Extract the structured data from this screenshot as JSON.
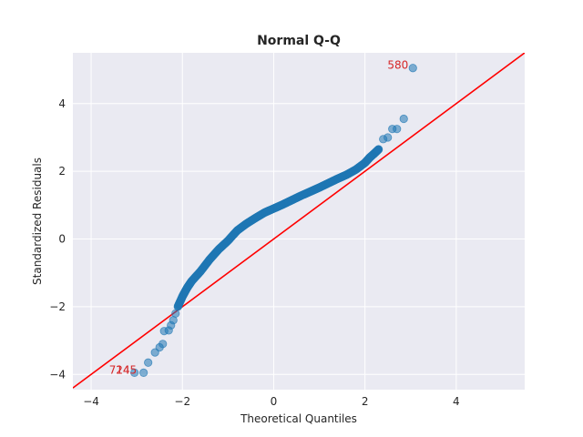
{
  "chart_data": {
    "type": "scatter",
    "title": "Normal Q-Q",
    "xlabel": "Theoretical Quantiles",
    "ylabel": "Standardized Residuals",
    "xlim": [
      -4.4,
      5.5
    ],
    "ylim": [
      -4.45,
      5.5
    ],
    "xticks": [
      -4,
      -2,
      0,
      2,
      4
    ],
    "yticks": [
      -4,
      -2,
      0,
      2,
      4
    ],
    "xtick_labels": [
      "−4",
      "−2",
      "0",
      "2",
      "4"
    ],
    "ytick_labels": [
      "−4",
      "−2",
      "0",
      "2",
      "4"
    ],
    "grid": true,
    "background": "#eaeaf2",
    "point_color": "#1f77b4",
    "line_color": "#ff0000",
    "annotation_color": "#d62728",
    "reference_line": {
      "slope": 1,
      "intercept": 0
    },
    "curve": [
      [
        -2.1,
        -2.0
      ],
      [
        -2.0,
        -1.7
      ],
      [
        -1.9,
        -1.45
      ],
      [
        -1.8,
        -1.25
      ],
      [
        -1.6,
        -0.95
      ],
      [
        -1.4,
        -0.6
      ],
      [
        -1.2,
        -0.3
      ],
      [
        -1.0,
        -0.05
      ],
      [
        -0.8,
        0.25
      ],
      [
        -0.6,
        0.45
      ],
      [
        -0.4,
        0.62
      ],
      [
        -0.2,
        0.78
      ],
      [
        0.0,
        0.9
      ],
      [
        0.2,
        1.02
      ],
      [
        0.4,
        1.15
      ],
      [
        0.6,
        1.28
      ],
      [
        0.8,
        1.4
      ],
      [
        1.0,
        1.52
      ],
      [
        1.2,
        1.65
      ],
      [
        1.4,
        1.78
      ],
      [
        1.6,
        1.9
      ],
      [
        1.8,
        2.05
      ],
      [
        2.0,
        2.25
      ],
      [
        2.1,
        2.4
      ],
      [
        2.2,
        2.52
      ],
      [
        2.3,
        2.65
      ]
    ],
    "outliers": [
      [
        -3.05,
        -3.95
      ],
      [
        -2.85,
        -3.95
      ],
      [
        -2.75,
        -3.65
      ],
      [
        -2.6,
        -3.35
      ],
      [
        -2.5,
        -3.2
      ],
      [
        -2.43,
        -3.1
      ],
      [
        -2.4,
        -2.72
      ],
      [
        -2.3,
        -2.7
      ],
      [
        -2.25,
        -2.55
      ],
      [
        -2.2,
        -2.4
      ],
      [
        -2.15,
        -2.2
      ],
      [
        2.4,
        2.95
      ],
      [
        2.5,
        3.0
      ],
      [
        2.6,
        3.25
      ],
      [
        2.7,
        3.25
      ],
      [
        2.85,
        3.55
      ],
      [
        3.05,
        5.05
      ]
    ],
    "annotations": [
      {
        "label": "580",
        "x": 3.05,
        "y": 5.05
      },
      {
        "label": "714",
        "x": -3.05,
        "y": -3.95
      },
      {
        "label": "245",
        "x": -2.9,
        "y": -3.95
      }
    ]
  }
}
